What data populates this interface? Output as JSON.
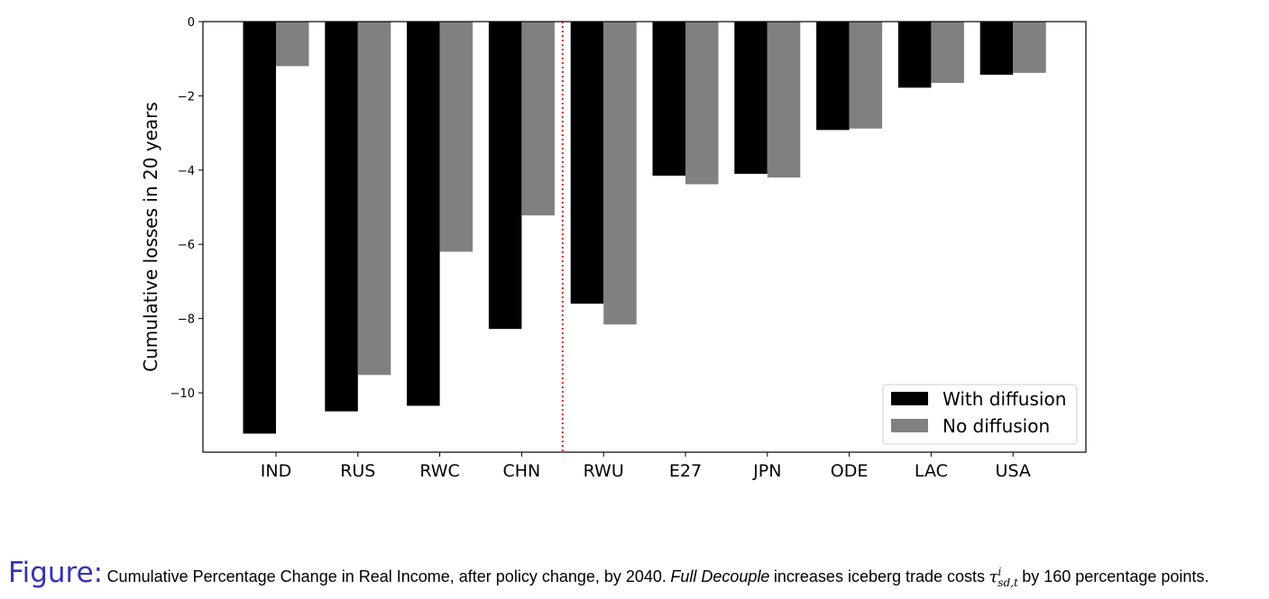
{
  "chart_data": {
    "type": "bar",
    "categories": [
      "IND",
      "RUS",
      "RWC",
      "CHN",
      "RWU",
      "E27",
      "JPN",
      "ODE",
      "LAC",
      "USA"
    ],
    "series": [
      {
        "name": "With diffusion",
        "color": "#000000",
        "values": [
          -11.1,
          -10.5,
          -10.35,
          -8.28,
          -7.6,
          -4.15,
          -4.1,
          -2.92,
          -1.78,
          -1.43
        ]
      },
      {
        "name": "No diffusion",
        "color": "#808080",
        "values": [
          -1.2,
          -9.52,
          -6.2,
          -5.22,
          -8.16,
          -4.38,
          -4.2,
          -2.88,
          -1.65,
          -1.38
        ]
      }
    ],
    "ylabel": "Cumulative losses in 20 years",
    "xlabel": "",
    "ylim": [
      -11.6,
      0
    ],
    "yticks": [
      0,
      -2,
      -4,
      -6,
      -8,
      -10
    ],
    "ytick_labels": [
      "0",
      "−2",
      "−4",
      "−6",
      "−8",
      "−10"
    ],
    "divider_after_category": "CHN",
    "divider_color": "#d62728",
    "legend_position": "lower-right",
    "grid": false
  },
  "caption": {
    "label": "Figure:",
    "text_before": "Cumulative Percentage Change in Real Income, after policy change, by 2040.",
    "emphasis": "Full Decouple",
    "text_middle": "increases iceberg trade costs",
    "symbol": "τ",
    "symbol_sup": "i",
    "symbol_sub": "sd,t",
    "text_after": "by 160 percentage points."
  }
}
